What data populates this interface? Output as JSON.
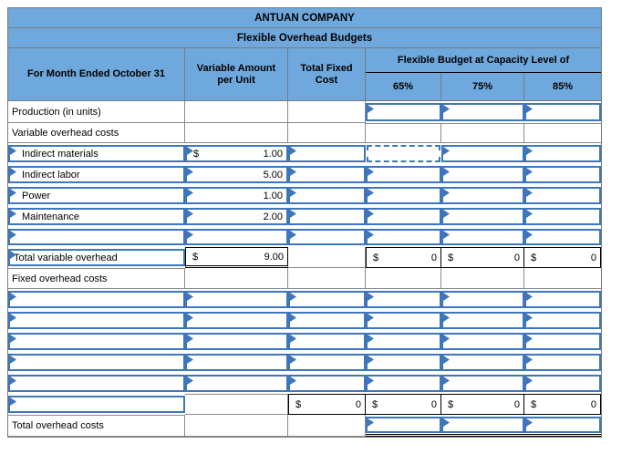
{
  "header": {
    "title": "ANTUAN COMPANY",
    "subtitle": "Flexible Overhead Budgets",
    "col_label": "For Month Ended October 31",
    "col_variable": "Variable Amount per Unit",
    "col_fixed": "Total Fixed Cost",
    "col_flex_group": "Flexible Budget at Capacity Level of",
    "capacity_levels": [
      "65%",
      "75%",
      "85%"
    ]
  },
  "colors": {
    "header_bg": "#6FA8DC",
    "input_border": "#3D76BC",
    "grid_border": "#8A8A8A",
    "total_border": "#000000"
  },
  "body_rows": [
    {
      "label": {
        "text": "Production (in units)",
        "type": "plain"
      },
      "cells": [
        {
          "t": "plain"
        },
        {
          "t": "plain"
        },
        {
          "t": "input"
        },
        {
          "t": "input"
        },
        {
          "t": "input"
        }
      ]
    },
    {
      "label": {
        "text": "Variable overhead costs",
        "type": "plain"
      },
      "cells": [
        {
          "t": "plain"
        },
        {
          "t": "plain"
        },
        {
          "t": "plain",
          "tl": true
        },
        {
          "t": "plain",
          "tl": true
        },
        {
          "t": "plain",
          "tl": true
        }
      ]
    },
    {
      "label": {
        "text": "Indirect materials",
        "type": "input",
        "indent": true
      },
      "cells": [
        {
          "t": "input",
          "p": "$",
          "v": "1.00"
        },
        {
          "t": "input"
        },
        {
          "t": "active"
        },
        {
          "t": "input"
        },
        {
          "t": "input"
        }
      ]
    },
    {
      "label": {
        "text": "Indirect labor",
        "type": "input",
        "indent": true
      },
      "cells": [
        {
          "t": "input",
          "v": "5.00"
        },
        {
          "t": "input"
        },
        {
          "t": "input"
        },
        {
          "t": "input"
        },
        {
          "t": "input"
        }
      ]
    },
    {
      "label": {
        "text": "Power",
        "type": "input",
        "indent": true
      },
      "cells": [
        {
          "t": "input",
          "v": "1.00"
        },
        {
          "t": "input"
        },
        {
          "t": "input"
        },
        {
          "t": "input"
        },
        {
          "t": "input"
        }
      ]
    },
    {
      "label": {
        "text": "Maintenance",
        "type": "input",
        "indent": true
      },
      "cells": [
        {
          "t": "input",
          "v": "2.00"
        },
        {
          "t": "input"
        },
        {
          "t": "input"
        },
        {
          "t": "input"
        },
        {
          "t": "input"
        }
      ]
    },
    {
      "label": {
        "text": "",
        "type": "input"
      },
      "cells": [
        {
          "t": "input"
        },
        {
          "t": "input"
        },
        {
          "t": "input"
        },
        {
          "t": "input"
        },
        {
          "t": "input"
        }
      ]
    },
    {
      "label": {
        "text": "Total variable overhead",
        "type": "input"
      },
      "cells": [
        {
          "t": "total",
          "p": "$",
          "v": "9.00",
          "dbl": true
        },
        {
          "t": "plain"
        },
        {
          "t": "total",
          "p": "$",
          "v": "0"
        },
        {
          "t": "total",
          "p": "$",
          "v": "0"
        },
        {
          "t": "total",
          "p": "$",
          "v": "0"
        }
      ]
    },
    {
      "label": {
        "text": "Fixed overhead costs",
        "type": "plain",
        "tl": true
      },
      "cells": [
        {
          "t": "plain"
        },
        {
          "t": "plain"
        },
        {
          "t": "plain"
        },
        {
          "t": "plain"
        },
        {
          "t": "plain"
        }
      ]
    },
    {
      "label": {
        "text": "",
        "type": "input"
      },
      "cells": [
        {
          "t": "input"
        },
        {
          "t": "input"
        },
        {
          "t": "input"
        },
        {
          "t": "input"
        },
        {
          "t": "input"
        }
      ]
    },
    {
      "label": {
        "text": "",
        "type": "input"
      },
      "cells": [
        {
          "t": "input"
        },
        {
          "t": "input"
        },
        {
          "t": "input"
        },
        {
          "t": "input"
        },
        {
          "t": "input"
        }
      ]
    },
    {
      "label": {
        "text": "",
        "type": "input"
      },
      "cells": [
        {
          "t": "input"
        },
        {
          "t": "input"
        },
        {
          "t": "input"
        },
        {
          "t": "input"
        },
        {
          "t": "input"
        }
      ]
    },
    {
      "label": {
        "text": "",
        "type": "input"
      },
      "cells": [
        {
          "t": "input"
        },
        {
          "t": "input"
        },
        {
          "t": "input"
        },
        {
          "t": "input"
        },
        {
          "t": "input"
        }
      ]
    },
    {
      "label": {
        "text": "",
        "type": "input"
      },
      "cells": [
        {
          "t": "input"
        },
        {
          "t": "input"
        },
        {
          "t": "input"
        },
        {
          "t": "input"
        },
        {
          "t": "input"
        }
      ]
    },
    {
      "label": {
        "text": "",
        "type": "input"
      },
      "cells": [
        {
          "t": "plain",
          "tl": true
        },
        {
          "t": "total",
          "p": "$",
          "v": "0"
        },
        {
          "t": "total",
          "p": "$",
          "v": "0"
        },
        {
          "t": "total",
          "p": "$",
          "v": "0"
        },
        {
          "t": "total",
          "p": "$",
          "v": "0"
        }
      ]
    },
    {
      "label": {
        "text": "Total overhead costs",
        "type": "plain",
        "tl": true
      },
      "cells": [
        {
          "t": "plain"
        },
        {
          "t": "plain"
        },
        {
          "t": "input",
          "ul": true
        },
        {
          "t": "input",
          "ul": true
        },
        {
          "t": "input",
          "ul": true
        }
      ]
    }
  ]
}
